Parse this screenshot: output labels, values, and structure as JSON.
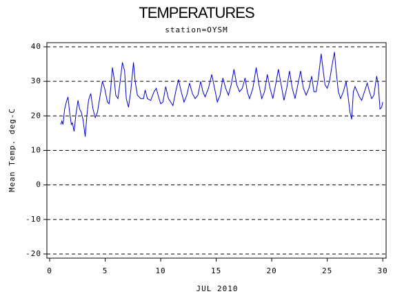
{
  "chart_data": {
    "type": "line",
    "title": "TEMPERATURES",
    "subtitle": "station=OYSM",
    "x_label": "JUL 2010",
    "y_label": "Mean Temp. deg-C",
    "xlim": [
      -0.25,
      30.3
    ],
    "xticks": [
      0,
      5,
      10,
      15,
      20,
      25,
      30
    ],
    "ylim": [
      -21.2,
      41.2
    ],
    "yticks": [
      -20,
      -10,
      0,
      10,
      20,
      30,
      40
    ],
    "grid": true,
    "series": [
      {
        "color": "#0000cc",
        "x": [
          1.0,
          1.1,
          1.2,
          1.35,
          1.5,
          1.65,
          1.8,
          1.95,
          2.05,
          2.2,
          2.35,
          2.55,
          2.7,
          2.85,
          3.0,
          3.2,
          3.35,
          3.5,
          3.7,
          3.9,
          4.1,
          4.3,
          4.5,
          4.75,
          4.95,
          5.2,
          5.35,
          5.5,
          5.65,
          5.8,
          5.95,
          6.15,
          6.35,
          6.55,
          6.75,
          6.9,
          7.1,
          7.3,
          7.55,
          7.7,
          7.9,
          8.2,
          8.45,
          8.6,
          8.8,
          9.1,
          9.4,
          9.6,
          9.85,
          10.0,
          10.2,
          10.45,
          10.7,
          10.9,
          11.1,
          11.35,
          11.6,
          11.85,
          12.1,
          12.35,
          12.6,
          12.85,
          13.1,
          13.35,
          13.6,
          13.8,
          14.0,
          14.3,
          14.6,
          14.85,
          15.1,
          15.35,
          15.6,
          15.85,
          16.1,
          16.35,
          16.6,
          16.85,
          17.1,
          17.35,
          17.6,
          17.8,
          18.0,
          18.3,
          18.6,
          18.85,
          19.1,
          19.35,
          19.6,
          19.85,
          20.1,
          20.35,
          20.6,
          20.85,
          21.1,
          21.35,
          21.6,
          21.85,
          22.1,
          22.35,
          22.6,
          22.85,
          23.1,
          23.35,
          23.6,
          23.8,
          24.0,
          24.2,
          24.45,
          24.6,
          24.8,
          25.0,
          25.2,
          25.45,
          25.65,
          25.8,
          26.0,
          26.2,
          26.45,
          26.7,
          26.9,
          27.05,
          27.2,
          27.35,
          27.5,
          27.7,
          27.9,
          28.1,
          28.35,
          28.6,
          28.8,
          29.0,
          29.2,
          29.45,
          29.6,
          29.75,
          29.9,
          30.0
        ],
        "values": [
          17.5,
          18.5,
          17.5,
          22,
          24,
          25.5,
          21,
          17.5,
          18,
          15.5,
          20,
          24.5,
          22,
          21,
          19,
          14,
          20,
          24.5,
          26.5,
          22,
          19.5,
          21,
          25,
          30,
          28,
          24,
          23.5,
          28,
          34,
          31,
          26,
          25,
          30,
          35.5,
          33,
          25,
          22.5,
          27,
          35.5,
          30,
          26,
          25,
          25,
          27.5,
          25,
          24.5,
          27,
          28,
          25,
          23.5,
          24,
          28.5,
          25,
          24,
          23,
          27,
          30.5,
          27,
          24,
          26,
          29.5,
          26.5,
          25,
          26,
          30,
          27,
          25.5,
          28,
          32,
          28,
          24,
          26,
          31,
          28,
          26,
          29,
          33.5,
          29,
          27,
          28,
          31,
          27,
          25,
          28,
          34,
          29,
          25,
          27,
          32,
          28,
          25,
          29,
          33.5,
          29,
          24.5,
          28,
          33,
          28,
          25,
          29,
          33,
          28,
          26,
          28,
          31.5,
          27,
          27,
          31,
          38,
          34,
          29,
          28,
          30,
          35,
          38.5,
          33,
          27,
          25,
          27,
          30,
          25,
          21,
          19,
          27,
          28.5,
          27,
          25.5,
          24.5,
          27,
          29.5,
          27,
          25,
          26,
          31.5,
          29,
          22,
          22.5,
          24
        ]
      }
    ]
  }
}
